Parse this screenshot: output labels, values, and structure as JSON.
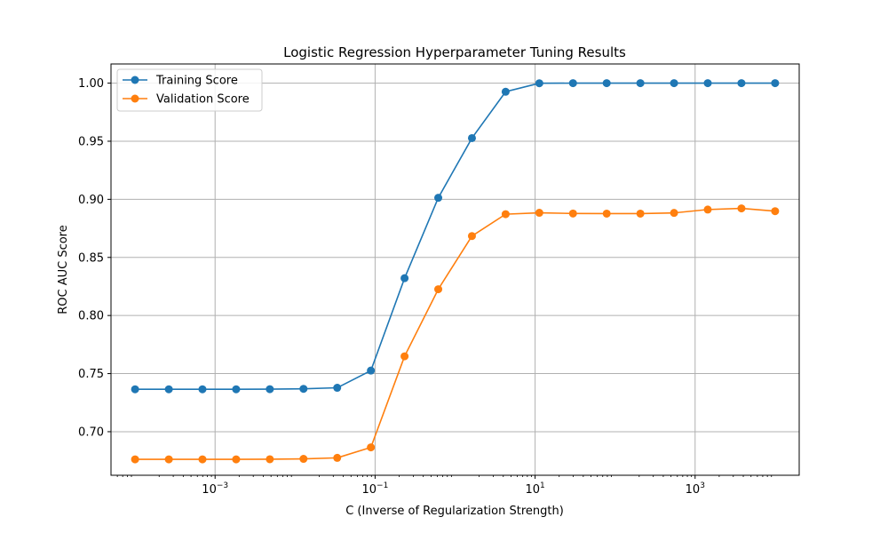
{
  "chart_data": {
    "type": "line",
    "title": "Logistic Regression Hyperparameter Tuning Results",
    "xlabel": "C (Inverse of Regularization Strength)",
    "ylabel": "ROC AUC Score",
    "xscale": "log",
    "xlim": [
      5e-05,
      20000
    ],
    "ylim": [
      0.6625,
      1.0165
    ],
    "grid": true,
    "legend_position": "top-left",
    "x": [
      0.0001,
      0.000264,
      0.000695,
      0.001833,
      0.004833,
      0.012743,
      0.033598,
      0.088587,
      0.233572,
      0.615848,
      1.623777,
      4.281332,
      11.288379,
      29.763514,
      78.475997,
      206.913808,
      545.559478,
      1438.449888,
      3792.690191,
      10000
    ],
    "series": [
      {
        "name": "Training Score",
        "color": "#1f77b4",
        "values": [
          0.7365,
          0.7365,
          0.7365,
          0.7365,
          0.7366,
          0.7369,
          0.7378,
          0.7526,
          0.8321,
          0.9013,
          0.9527,
          0.9926,
          0.9999,
          1.0,
          1.0,
          1.0,
          1.0,
          1.0,
          1.0,
          1.0
        ]
      },
      {
        "name": "Validation Score",
        "color": "#ff7f0e",
        "values": [
          0.6762,
          0.6762,
          0.6762,
          0.6762,
          0.6763,
          0.6766,
          0.6775,
          0.6865,
          0.7649,
          0.8226,
          0.8684,
          0.8872,
          0.8884,
          0.8878,
          0.8877,
          0.8877,
          0.8883,
          0.8912,
          0.8922,
          0.8898
        ]
      }
    ],
    "y_ticks": [
      0.7,
      0.75,
      0.8,
      0.85,
      0.9,
      0.95,
      1.0
    ],
    "y_tick_labels": [
      "0.70",
      "0.75",
      "0.80",
      "0.85",
      "0.90",
      "0.95",
      "1.00"
    ],
    "x_ticks": [
      0.001,
      0.1,
      10,
      1000
    ],
    "x_tick_labels": [
      {
        "base": "10",
        "exp": "−3"
      },
      {
        "base": "10",
        "exp": "−1"
      },
      {
        "base": "10",
        "exp": "1"
      },
      {
        "base": "10",
        "exp": "3"
      }
    ]
  }
}
